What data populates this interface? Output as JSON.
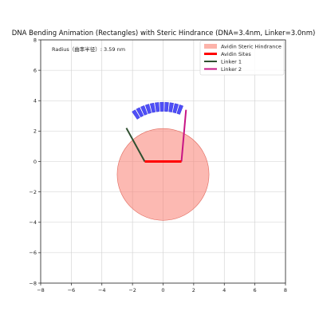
{
  "chart_data": {
    "type": "scatter",
    "title": "DNA Bending Animation (Rectangles) with Steric Hindrance (DNA=3.4nm, Linker=3.0nm)",
    "xlabel": "",
    "ylabel": "",
    "xlim": [
      -8,
      8
    ],
    "ylim": [
      -8,
      8
    ],
    "x_ticks": [
      -8,
      -6,
      -4,
      -2,
      0,
      2,
      4,
      6,
      8
    ],
    "y_ticks": [
      -8,
      -6,
      -4,
      -2,
      0,
      2,
      4,
      6,
      8
    ],
    "tick_labels_x": [
      "−8",
      "−6",
      "−4",
      "−2",
      "0",
      "2",
      "4",
      "6",
      "8"
    ],
    "tick_labels_y": [
      "−8",
      "−6",
      "−4",
      "−2",
      "0",
      "2",
      "4",
      "6",
      "8"
    ],
    "grid": true,
    "aspect": "equal",
    "annotation": "Radius（曲率半径）: 3.59 nm",
    "legend_position": "top-right",
    "legend": [
      {
        "label": "Avidin Steric Hindrance",
        "kind": "patch",
        "color": "#fa8072"
      },
      {
        "label": "Avidin Sites",
        "kind": "line",
        "color": "#ff0000"
      },
      {
        "label": "Linker 1",
        "kind": "line",
        "color": "#2f4f2f"
      },
      {
        "label": "Linker 2",
        "kind": "line",
        "color": "#c71585"
      }
    ],
    "avidin_circle": {
      "center": [
        0,
        -0.85
      ],
      "radius": 3.0,
      "color": "#fa8072"
    },
    "avidin_sites": {
      "x": [
        -1.2,
        1.2
      ],
      "y": [
        0,
        0
      ],
      "color": "#ff0000"
    },
    "linker_1": {
      "x": [
        -1.2,
        -2.4
      ],
      "y": [
        0,
        2.2
      ],
      "color": "#2f4f2f"
    },
    "linker_2": {
      "x": [
        1.2,
        1.5
      ],
      "y": [
        0,
        3.4
      ],
      "color": "#c71585"
    },
    "dna_arc": {
      "center": [
        0,
        0.3
      ],
      "inner_radius": 3.0,
      "outer_radius": 3.6,
      "start_angle_deg": 68,
      "end_angle_deg": 125,
      "segments": 11,
      "color": "#3b3bf5"
    }
  }
}
